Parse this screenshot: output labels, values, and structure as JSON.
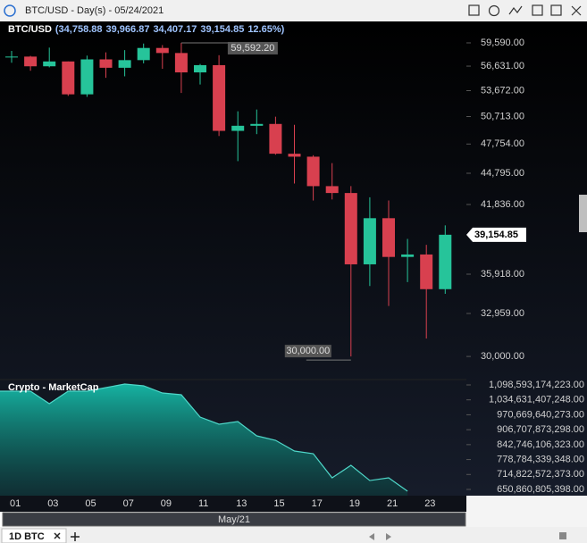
{
  "ui": {
    "toolbar_title": "BTC/USD - Day(s) - 05/24/2021",
    "tab": "1D BTC"
  },
  "chart_data": [
    {
      "type": "candlestick",
      "legend": {
        "symbol": "BTC/USD",
        "values": [
          "(34,758.88",
          "39,966.87",
          "34,407.17",
          "39,154.85",
          "12.65%)"
        ]
      },
      "categories": [
        "01",
        null,
        "03",
        null,
        "05",
        null,
        "07",
        null,
        "09",
        null,
        "11",
        null,
        "13",
        null,
        "15",
        null,
        "17",
        null,
        "19",
        null,
        "21",
        null,
        "23",
        null
      ],
      "xlabel": "May/21",
      "series": [
        {
          "up_color": "#26c49a",
          "down_color": "#d8404f",
          "open": [
            57714,
            57825,
            56610,
            57215,
            53241,
            57473,
            56428,
            57380,
            58928,
            58280,
            55860,
            56750,
            49150,
            49700,
            49900,
            46750,
            46450,
            43550,
            42900,
            36700,
            40600,
            37300,
            37500,
            34758.88
          ],
          "high": [
            58550,
            57920,
            58973,
            57215,
            57950,
            58360,
            58650,
            59500,
            59300,
            59592.2,
            56900,
            58000,
            51300,
            51500,
            50700,
            49800,
            46600,
            45800,
            43550,
            42500,
            42200,
            38800,
            38300,
            39966.87
          ],
          "low": [
            57050,
            56060,
            56478,
            53060,
            52950,
            55200,
            55380,
            56975,
            56300,
            53400,
            54400,
            48600,
            46000,
            48800,
            46650,
            43800,
            42200,
            42300,
            30000,
            35000,
            33500,
            35300,
            31200,
            34407.17
          ],
          "close": [
            57828,
            56610,
            57214,
            53241,
            57473,
            56428,
            57380,
            58928,
            58280,
            55860,
            56750,
            49150,
            49700,
            49900,
            46750,
            46450,
            43550,
            42900,
            36700,
            40600,
            37300,
            37500,
            34758.88,
            39154.85
          ]
        }
      ],
      "high_marker": {
        "value": 59592.2,
        "label": "59,592.20"
      },
      "low_marker": {
        "value": 30000,
        "label": "30,000.00"
      },
      "last_price": {
        "value": 39154.85,
        "label": "39,154.85"
      },
      "log_scale": true,
      "grid": false,
      "ylim": [
        28800,
        62450
      ],
      "yticks": [
        {
          "value": 59590,
          "label": "59,590.00"
        },
        {
          "value": 56631,
          "label": "56,631.00"
        },
        {
          "value": 53672,
          "label": "53,672.00"
        },
        {
          "value": 50713,
          "label": "50,713.00"
        },
        {
          "value": 47754,
          "label": "47,754.00"
        },
        {
          "value": 44795,
          "label": "44,795.00"
        },
        {
          "value": 41836,
          "label": "41,836.00"
        },
        {
          "value": 35918,
          "label": "35,918.00"
        },
        {
          "value": 32959,
          "label": "32,959.00"
        },
        {
          "value": 30000,
          "label": "30,000.00"
        }
      ]
    },
    {
      "type": "area",
      "title": "Crypto - MarketCap",
      "color": "#4fd6c8",
      "values": [
        1071800000000,
        1071800000000,
        1018200000000,
        1071800000000,
        1071800000000,
        1087100000000,
        1102400000000,
        1094800000000,
        1064100000000,
        1056500000000,
        960800000000,
        930200000000,
        941700000000,
        880400000000,
        861300000000,
        815400000000,
        803900000000,
        700500000000,
        754100000000,
        689000000000,
        700500000000,
        643100000000,
        null,
        null
      ],
      "ylim": [
        639400000000,
        1121500000000
      ],
      "yticks": [
        {
          "value": 1098593174223,
          "label": "1,098,593,174,223.00"
        },
        {
          "value": 1034631407248,
          "label": "1,034,631,407,248.00"
        },
        {
          "value": 970669640273,
          "label": "970,669,640,273.00"
        },
        {
          "value": 906707873298,
          "label": "906,707,873,298.00"
        },
        {
          "value": 842746106323,
          "label": "842,746,106,323.00"
        },
        {
          "value": 778784339348,
          "label": "778,784,339,348.00"
        },
        {
          "value": 714822572373,
          "label": "714,822,572,373.00"
        },
        {
          "value": 650860805398,
          "label": "650,860,805,398.00"
        }
      ]
    }
  ]
}
